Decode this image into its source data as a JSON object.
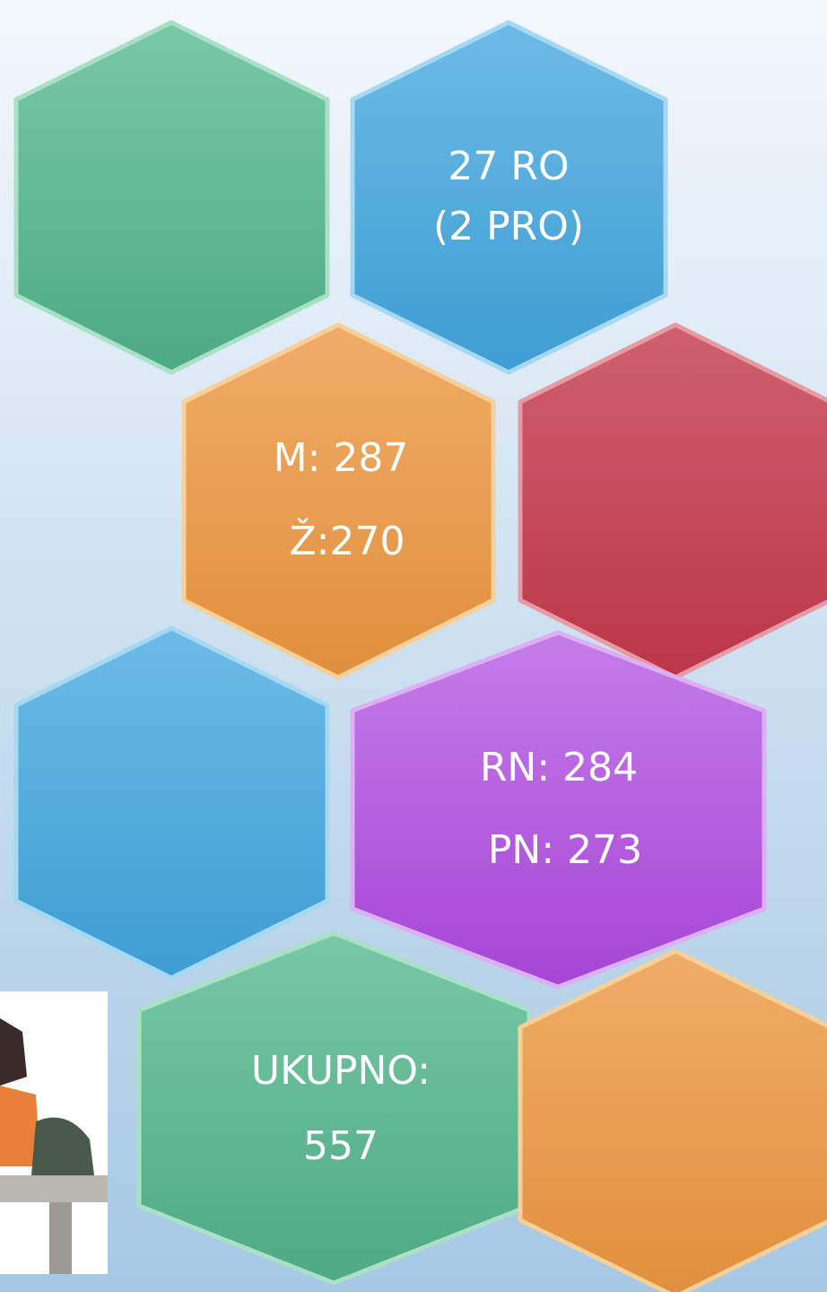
{
  "tiles": [
    {
      "lines": [
        "27 RO",
        "(2 PRO)"
      ]
    },
    {
      "lines": [
        "M: 287",
        "Ž:270"
      ]
    },
    {
      "lines": [
        "RN: 284",
        "PN: 273"
      ]
    },
    {
      "lines": [
        "UKUPNO:",
        "557"
      ]
    }
  ]
}
